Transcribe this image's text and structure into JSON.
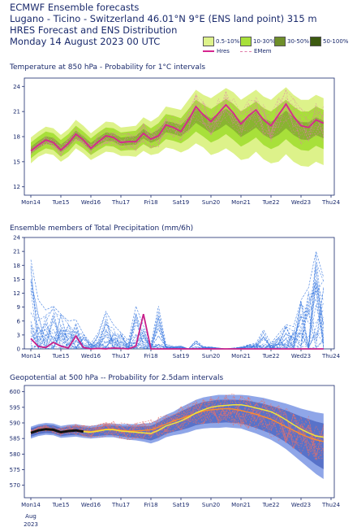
{
  "header": {
    "line1": "ECMWF Ensemble forecasts",
    "line2": "Lugano - Ticino - Switzerland 46.01°N 9°E (ENS land point) 315 m",
    "line3": "HRES Forecast and ENS Distribution",
    "line4": "Monday 14 August 2023 00 UTC"
  },
  "legend": {
    "items": [
      {
        "label": "0.5-10%",
        "color": "#ddf28a"
      },
      {
        "label": "10-30%",
        "color": "#a8e03a"
      },
      {
        "label": "30-50%",
        "color": "#6f8f2a"
      },
      {
        "label": "50-100%",
        "color": "#3c5a10"
      }
    ],
    "hres_label": "Hres",
    "emem_label": "EMem",
    "hres_color": "#d6268f",
    "emem_color": "#e07aa8"
  },
  "x_axis": {
    "ticks": [
      "Mon14",
      "Tue15",
      "Wed16",
      "Thu17",
      "Fri18",
      "Sat19",
      "Sun20",
      "Mon21",
      "Tue22",
      "Wed23",
      "Thu24"
    ],
    "highlight": "Sun20",
    "highlight_color": "#e0201a",
    "month": "Aug",
    "year": "2023"
  },
  "chart_data": [
    {
      "type": "area",
      "title": "Temperature at 850 hPa - Probability for 1°C intervals",
      "ylim": [
        11,
        25
      ],
      "yticks": [
        12,
        15,
        18,
        21,
        24
      ],
      "x_days": [
        0,
        0.25,
        0.5,
        0.75,
        1,
        1.25,
        1.5,
        1.75,
        2,
        2.25,
        2.5,
        2.75,
        3,
        3.25,
        3.5,
        3.75,
        4,
        4.25,
        4.5,
        4.75,
        5,
        5.25,
        5.5,
        5.75,
        6,
        6.25,
        6.5,
        6.75,
        7,
        7.25,
        7.5,
        7.75,
        8,
        8.25,
        8.5,
        8.75,
        9,
        9.25,
        9.5,
        9.75
      ],
      "hres": [
        16.3,
        17.0,
        17.6,
        17.3,
        16.4,
        17.2,
        18.3,
        17.6,
        16.6,
        17.4,
        18.1,
        17.9,
        17.3,
        17.4,
        17.4,
        18.4,
        17.7,
        18.1,
        19.4,
        19.1,
        18.6,
        20.0,
        21.6,
        20.6,
        19.8,
        20.8,
        21.8,
        20.8,
        19.5,
        20.5,
        21.2,
        20.0,
        19.3,
        20.6,
        21.9,
        20.4,
        19.3,
        19.1,
        20.0,
        19.6
      ],
      "band_0_5_10": {
        "low": [
          14.8,
          15.6,
          16.0,
          15.8,
          15.0,
          15.6,
          16.6,
          16.0,
          15.2,
          15.7,
          16.2,
          16.1,
          15.7,
          15.7,
          15.6,
          16.3,
          15.8,
          16.0,
          16.7,
          16.5,
          16.1,
          16.5,
          17.2,
          16.7,
          15.8,
          16.1,
          16.6,
          16.0,
          15.2,
          15.4,
          16.2,
          15.3,
          14.8,
          15.0,
          15.9,
          15.0,
          14.5,
          14.4,
          15.0,
          14.6
        ],
        "high": [
          17.9,
          18.6,
          19.2,
          19.0,
          18.2,
          18.9,
          20.0,
          19.3,
          18.4,
          19.1,
          19.8,
          19.7,
          19.1,
          19.2,
          19.3,
          20.3,
          19.8,
          20.4,
          21.6,
          21.4,
          21.2,
          22.4,
          23.6,
          23.0,
          22.6,
          23.2,
          23.8,
          23.3,
          22.4,
          23.0,
          23.6,
          22.8,
          22.4,
          23.2,
          23.9,
          23.0,
          22.4,
          22.4,
          23.0,
          22.6
        ]
      },
      "band_10_30": {
        "low": [
          15.4,
          16.1,
          16.6,
          16.4,
          15.6,
          16.2,
          17.2,
          16.6,
          15.8,
          16.4,
          16.9,
          16.8,
          16.3,
          16.4,
          16.4,
          17.1,
          16.6,
          16.9,
          17.7,
          17.5,
          17.2,
          17.8,
          18.6,
          18.0,
          17.3,
          17.7,
          18.3,
          17.6,
          16.8,
          17.3,
          17.9,
          17.0,
          16.5,
          16.9,
          17.7,
          16.9,
          16.4,
          16.3,
          16.9,
          16.5
        ],
        "high": [
          17.3,
          18.0,
          18.6,
          18.4,
          17.6,
          18.3,
          19.3,
          18.6,
          17.8,
          18.5,
          19.1,
          19.0,
          18.5,
          18.6,
          18.7,
          19.6,
          19.0,
          19.6,
          20.7,
          20.5,
          20.2,
          21.3,
          22.4,
          21.8,
          21.3,
          21.9,
          22.5,
          21.9,
          21.0,
          21.6,
          22.2,
          21.4,
          21.0,
          21.7,
          22.4,
          21.6,
          21.0,
          21.0,
          21.6,
          21.2
        ]
      },
      "emem_note": "ensemble member lines"
    },
    {
      "type": "line",
      "title": "Ensemble members of Total Precipitation (mm/6h)",
      "ylim": [
        0,
        24
      ],
      "yticks": [
        0,
        3,
        6,
        9,
        12,
        15,
        18,
        21,
        24
      ],
      "x_days": [
        0,
        0.25,
        0.5,
        0.75,
        1,
        1.25,
        1.5,
        1.75,
        2,
        2.25,
        2.5,
        2.75,
        3,
        3.25,
        3.5,
        3.75,
        4,
        4.25,
        4.5,
        4.75,
        5,
        5.25,
        5.5,
        5.75,
        6,
        6.25,
        6.5,
        6.75,
        7,
        7.25,
        7.5,
        7.75,
        8,
        8.25,
        8.5,
        8.75,
        9,
        9.25,
        9.5,
        9.75
      ],
      "hres": [
        2.2,
        0.5,
        0.3,
        1.4,
        0.6,
        0.2,
        2.8,
        0.3,
        0.0,
        0.1,
        0.0,
        0.2,
        0.1,
        0.0,
        0.6,
        7.5,
        0.0,
        0.0,
        0.0,
        0.0,
        0.0,
        0.0,
        0.0,
        0.0,
        0.0,
        0.0,
        0.0,
        0.0,
        0.0,
        0.0,
        0.0,
        0.0,
        0.0,
        0.0,
        0.0,
        0.0,
        0.0,
        0.0,
        0.0,
        0.0
      ],
      "member_max": [
        19.2,
        10.5,
        8.4,
        9.2,
        7.5,
        6.0,
        6.3,
        3.2,
        1.2,
        3.5,
        8.1,
        5.2,
        3.5,
        1.8,
        9.2,
        5.0,
        1.0,
        9.2,
        1.0,
        0.5,
        0.6,
        0.0,
        1.8,
        0.5,
        0.4,
        0.2,
        0.0,
        0.2,
        0.4,
        0.9,
        1.2,
        4.1,
        1.2,
        3.2,
        5.2,
        4.8,
        10.5,
        13.2,
        21.0,
        15.4
      ]
    },
    {
      "type": "area",
      "title": "Geopotential at 500 hPa -- Probability for 2.5dam intervals",
      "ylim": [
        566,
        602
      ],
      "yticks": [
        570,
        575,
        580,
        585,
        590,
        595,
        600
      ],
      "x_days": [
        0,
        0.25,
        0.5,
        0.75,
        1,
        1.25,
        1.5,
        1.75,
        2,
        2.25,
        2.5,
        2.75,
        3,
        3.25,
        3.5,
        3.75,
        4,
        4.25,
        4.5,
        4.75,
        5,
        5.25,
        5.5,
        5.75,
        6,
        6.25,
        6.5,
        6.75,
        7,
        7.25,
        7.5,
        7.75,
        8,
        8.25,
        8.5,
        8.75,
        9,
        9.25,
        9.5,
        9.75
      ],
      "hres": [
        586.8,
        587.6,
        588.0,
        587.8,
        587.0,
        587.4,
        587.6,
        587.2,
        587.0,
        587.4,
        587.8,
        587.8,
        587.4,
        587.2,
        587.0,
        586.8,
        586.6,
        587.6,
        589.0,
        589.8,
        590.6,
        591.8,
        593.2,
        594.2,
        595.0,
        595.4,
        595.6,
        595.8,
        595.8,
        595.4,
        594.8,
        594.2,
        593.6,
        592.4,
        591.0,
        589.4,
        588.0,
        586.8,
        585.8,
        585.4
      ],
      "band_low": [
        585.0,
        585.8,
        586.2,
        586.0,
        585.2,
        585.4,
        585.6,
        585.2,
        585.0,
        585.2,
        585.4,
        585.4,
        585.0,
        584.6,
        584.4,
        584.0,
        583.4,
        584.2,
        585.4,
        586.0,
        586.4,
        587.0,
        587.8,
        588.2,
        588.4,
        588.4,
        588.6,
        588.4,
        588.2,
        587.4,
        586.6,
        585.6,
        584.6,
        583.2,
        581.6,
        579.6,
        577.6,
        575.6,
        573.6,
        572.0
      ],
      "band_high": [
        588.8,
        589.6,
        590.0,
        589.8,
        589.0,
        589.4,
        589.6,
        589.2,
        589.0,
        589.4,
        589.8,
        589.8,
        589.6,
        589.6,
        589.6,
        589.8,
        590.0,
        591.2,
        592.6,
        593.6,
        595.0,
        596.2,
        597.4,
        598.2,
        598.6,
        599.0,
        599.0,
        599.0,
        599.0,
        598.8,
        598.4,
        598.0,
        597.4,
        596.8,
        596.2,
        595.4,
        594.6,
        594.0,
        593.4,
        593.0
      ],
      "emem": [
        587.0,
        587.8,
        588.2,
        588.0,
        587.2,
        587.6,
        587.8,
        587.4,
        587.2,
        587.6,
        588.0,
        588.0,
        587.6,
        587.4,
        587.4,
        587.6,
        587.8,
        588.6,
        589.6,
        590.6,
        591.4,
        592.2,
        593.0,
        593.8,
        594.2,
        594.4,
        594.6,
        594.4,
        594.0,
        593.4,
        592.8,
        592.0,
        591.2,
        590.0,
        588.8,
        587.6,
        586.4,
        585.4,
        584.6,
        584.0
      ]
    }
  ]
}
